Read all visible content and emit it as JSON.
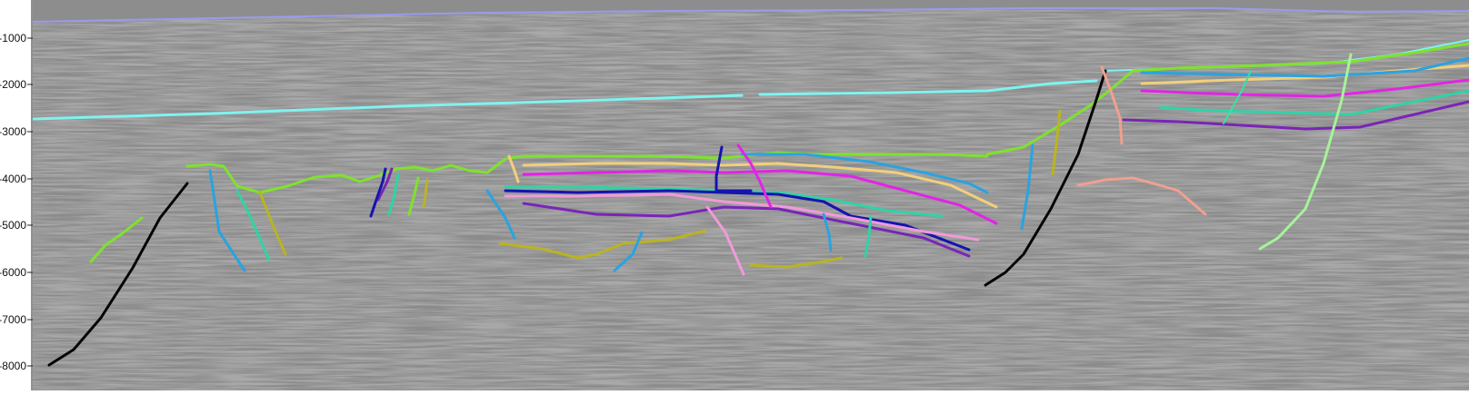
{
  "axis": {
    "ticks": [
      "-1000",
      "-2000",
      "-3000",
      "-4000",
      "-5000",
      "-6000",
      "-7000",
      "-8000"
    ]
  },
  "colors": {
    "seafloor": "#9a9aee",
    "horizon_cyan": "#7ff3f0",
    "horizon_green": "#7fe22e",
    "horizon_yellow": "#f2cf7a",
    "horizon_magenta": "#e323e6",
    "horizon_teal": "#2fd3a6",
    "horizon_blue": "#2aa3e0",
    "horizon_navy": "#1414b0",
    "horizon_purple": "#7a24b8",
    "horizon_olive": "#b9b422",
    "horizon_pink": "#f19ad9",
    "horizon_salmon": "#f0a090",
    "fault_black": "#050505",
    "fault_lightgreen": "#a6f39a",
    "fault_mint": "#38e2a3",
    "background": "#8b8b8b"
  },
  "icons": [
    "seismic-section"
  ]
}
